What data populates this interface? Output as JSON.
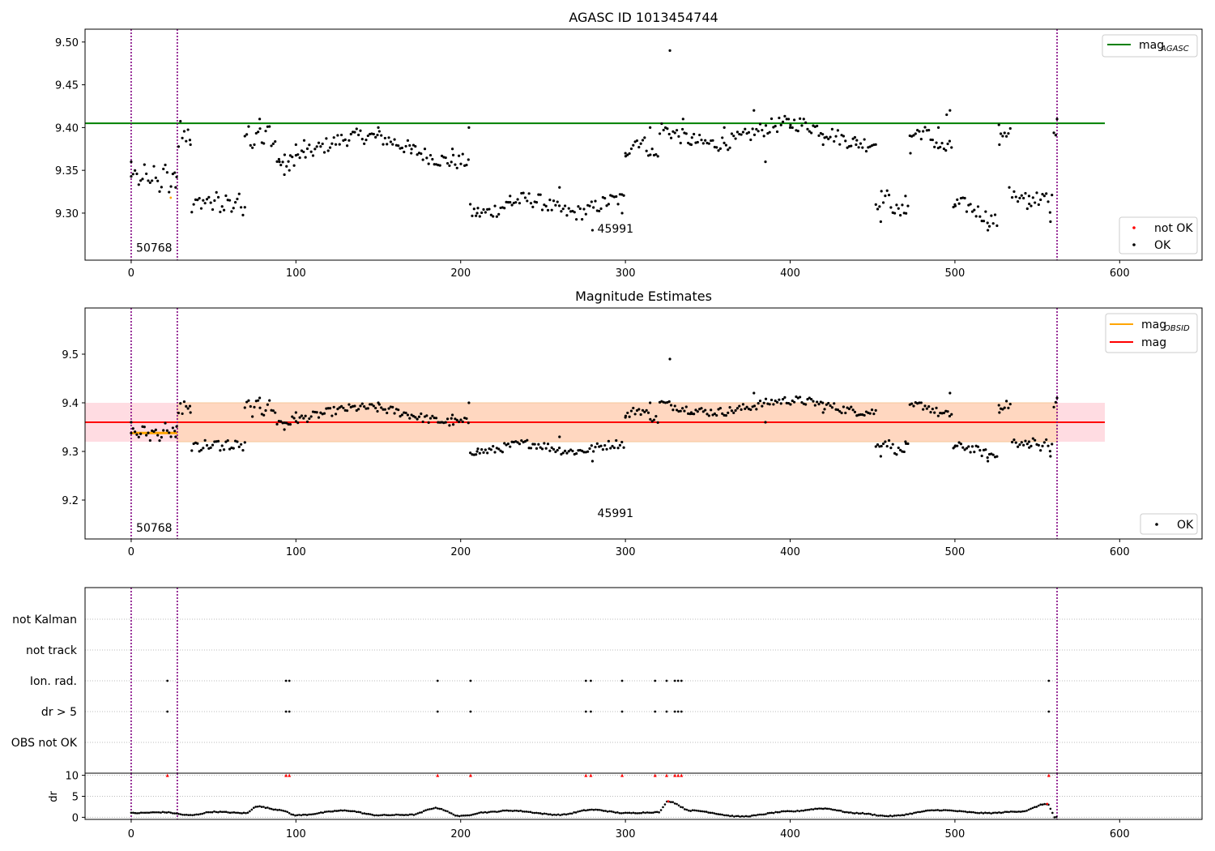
{
  "figure": {
    "panels": [
      {
        "id": "agasc",
        "title": "AGASC ID 1013454744",
        "x_ticks": [
          0,
          100,
          200,
          300,
          400,
          500,
          600
        ],
        "y_ticks": [
          9.3,
          9.35,
          9.4,
          9.45,
          9.5
        ],
        "y_tick_labels": [
          "9.30",
          "9.35",
          "9.40",
          "9.45",
          "9.50"
        ],
        "xlim": [
          -28,
          650
        ],
        "ylim": [
          9.245,
          9.515
        ],
        "annotations": [
          {
            "text": "50768",
            "x": 3,
            "y": 9.255
          },
          {
            "text": "45991",
            "x": 283,
            "y": 9.277
          }
        ],
        "legend_top": {
          "line": "mag",
          "sub": "AGASC",
          "color": "#008000"
        },
        "legend_bottom": [
          {
            "label": "not OK",
            "color": "#ff0000"
          },
          {
            "label": "OK",
            "color": "#000000"
          }
        ]
      },
      {
        "id": "estimates",
        "title": "Magnitude Estimates",
        "x_ticks": [
          0,
          100,
          200,
          300,
          400,
          500,
          600
        ],
        "y_ticks": [
          9.2,
          9.3,
          9.4,
          9.5
        ],
        "y_tick_labels": [
          "9.2",
          "9.3",
          "9.4",
          "9.5"
        ],
        "xlim": [
          -28,
          650
        ],
        "ylim": [
          9.12,
          9.595
        ],
        "annotations": [
          {
            "text": "50768",
            "x": 3,
            "y": 9.135
          },
          {
            "text": "45991",
            "x": 283,
            "y": 9.165
          }
        ],
        "legend_top": [
          {
            "label": "mag",
            "sub": "OBSID",
            "color": "#ffa500"
          },
          {
            "label": "mag",
            "sub": "",
            "color": "#ff0000"
          }
        ],
        "legend_bottom": [
          {
            "label": "OK",
            "color": "#000000"
          }
        ]
      },
      {
        "id": "flags",
        "categories": [
          "not Kalman",
          "not track",
          "Ion. rad.",
          "dr > 5",
          "OBS not OK"
        ],
        "xlim": [
          -28,
          650
        ]
      },
      {
        "id": "dr",
        "ylabel": "dr",
        "x_ticks": [
          0,
          100,
          200,
          300,
          400,
          500,
          600
        ],
        "y_ticks": [
          0,
          5,
          10
        ],
        "y_tick_labels": [
          "0",
          "5",
          "10"
        ],
        "xlim": [
          -28,
          650
        ],
        "ylim": [
          -0.5,
          10.5
        ]
      }
    ]
  },
  "chart_data": [
    {
      "type": "scatter",
      "title": "AGASC ID 1013454744",
      "xlabel": "",
      "ylabel": "",
      "xlim": [
        -28,
        650
      ],
      "ylim": [
        9.245,
        9.515
      ],
      "grid": false,
      "legend_placement": "top-right and bottom-right",
      "series": [
        {
          "name": "mag_AGASC",
          "kind": "hline",
          "y": 9.405,
          "x_range": [
            -28,
            591
          ],
          "color": "#008000"
        },
        {
          "name": "OK",
          "color": "#000000",
          "x": [
            0,
            27,
            36,
            69,
            78,
            90,
            93,
            96,
            100,
            105,
            150,
            170,
            195,
            205,
            210,
            230,
            260,
            280,
            298,
            300,
            315,
            327,
            335,
            340,
            360,
            378,
            385,
            400,
            420,
            440,
            452,
            455,
            470,
            473,
            490,
            495,
            497,
            500,
            520,
            527,
            533,
            545,
            558,
            562
          ],
          "y": [
            9.36,
            9.33,
            9.38,
            9.39,
            9.41,
            9.36,
            9.345,
            9.35,
            9.38,
            9.385,
            9.4,
            9.37,
            9.375,
            9.4,
            9.3,
            9.32,
            9.33,
            9.28,
            9.3,
            9.37,
            9.4,
            9.49,
            9.41,
            9.38,
            9.4,
            9.42,
            9.36,
            9.4,
            9.38,
            9.38,
            9.31,
            9.29,
            9.32,
            9.37,
            9.4,
            9.415,
            9.42,
            9.31,
            9.28,
            9.38,
            9.33,
            9.32,
            9.29,
            9.41
          ]
        },
        {
          "name": "not OK",
          "color": "#ff0000",
          "x": [
            24
          ],
          "y": [
            9.318
          ]
        }
      ],
      "vlines": [
        0,
        28,
        562
      ]
    },
    {
      "type": "scatter",
      "title": "Magnitude Estimates",
      "xlim": [
        -28,
        650
      ],
      "ylim": [
        9.12,
        9.595
      ],
      "series": [
        {
          "name": "mag_OBSID",
          "kind": "hline-segment",
          "y": 9.338,
          "x_range": [
            0,
            28
          ],
          "color": "#ffa500"
        },
        {
          "name": "mag",
          "kind": "hline",
          "y": 9.36,
          "x_range": [
            -28,
            591
          ],
          "color": "#ff0000"
        },
        {
          "name": "band",
          "kind": "fill",
          "y_range": [
            9.32,
            9.4
          ],
          "x_range": [
            -28,
            591
          ]
        },
        {
          "name": "OK",
          "color": "#000000",
          "x": [
            0,
            27,
            36,
            69,
            78,
            93,
            100,
            150,
            195,
            205,
            210,
            260,
            280,
            300,
            315,
            327,
            340,
            378,
            385,
            420,
            452,
            455,
            470,
            497,
            500,
            520,
            527,
            545,
            558,
            562
          ],
          "y": [
            9.36,
            9.33,
            9.38,
            9.39,
            9.41,
            9.345,
            9.38,
            9.4,
            9.375,
            9.4,
            9.3,
            9.33,
            9.28,
            9.37,
            9.4,
            9.49,
            9.38,
            9.42,
            9.36,
            9.38,
            9.31,
            9.29,
            9.32,
            9.42,
            9.31,
            9.28,
            9.38,
            9.32,
            9.29,
            9.41
          ]
        }
      ],
      "vlines": [
        0,
        28,
        562
      ]
    },
    {
      "type": "scatter",
      "title": "",
      "categories": [
        "not Kalman",
        "not track",
        "Ion. rad.",
        "dr > 5",
        "OBS not OK"
      ],
      "series": [
        {
          "name": "Ion. rad.",
          "x": [
            22,
            94,
            96,
            186,
            206,
            276,
            279,
            298,
            318,
            325,
            330,
            332,
            334,
            557
          ]
        },
        {
          "name": "dr > 5",
          "x": [
            22,
            94,
            96,
            186,
            206,
            276,
            279,
            298,
            318,
            325,
            330,
            332,
            334,
            557
          ]
        }
      ],
      "vlines": [
        0,
        28,
        562
      ]
    },
    {
      "type": "scatter",
      "ylabel": "dr",
      "xlim": [
        -28,
        650
      ],
      "ylim": [
        -0.5,
        10.5
      ],
      "series": [
        {
          "name": "dr clipped (red)",
          "color": "#ff0000",
          "x": [
            22,
            94,
            96,
            186,
            206,
            276,
            279,
            298,
            318,
            325,
            330,
            332,
            334,
            557
          ],
          "y": [
            10,
            10,
            10,
            10,
            10,
            10,
            10,
            10,
            10,
            10,
            10,
            10,
            10,
            10
          ]
        },
        {
          "name": "dr",
          "color": "#000000",
          "x": [
            0,
            20,
            36,
            50,
            70,
            76,
            90,
            100,
            130,
            150,
            170,
            185,
            200,
            215,
            230,
            260,
            280,
            300,
            320,
            326,
            340,
            370,
            400,
            420,
            440,
            460,
            490,
            520,
            540,
            556,
            560
          ],
          "y": [
            1.0,
            1.2,
            0.5,
            1.3,
            1.0,
            2.6,
            1.8,
            0.5,
            1.6,
            0.5,
            0.6,
            2.2,
            0.3,
            1.2,
            1.6,
            0.6,
            1.8,
            1.0,
            1.2,
            3.8,
            1.6,
            0.2,
            1.4,
            2.1,
            1.0,
            0.3,
            1.7,
            1.0,
            1.4,
            3.2,
            0.8
          ]
        }
      ],
      "vlines": [
        0,
        28,
        562
      ]
    }
  ]
}
